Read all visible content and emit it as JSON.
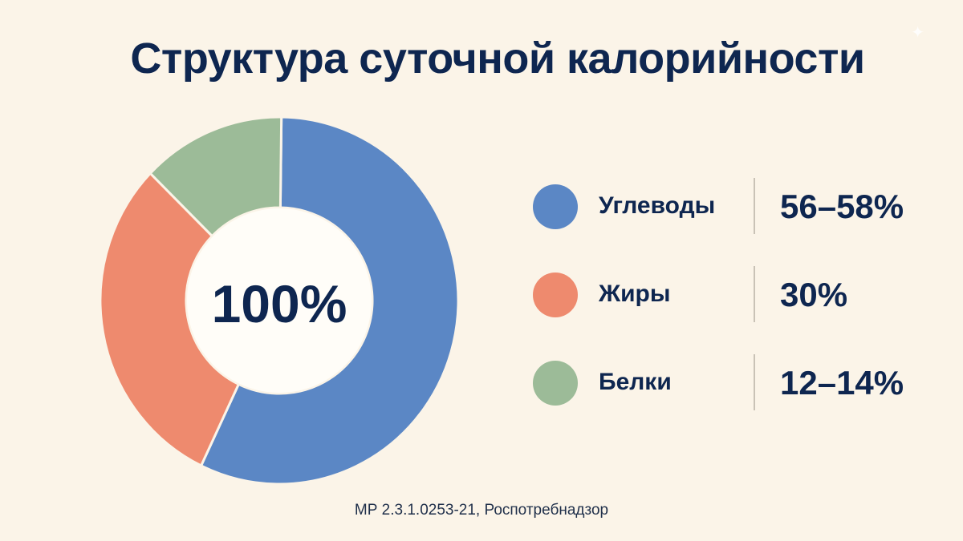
{
  "title": "Структура суточной калорийности",
  "source": "МР 2.3.1.0253-21, Роспотребнадзор",
  "chart_data": {
    "type": "pie",
    "title": "Структура суточной калорийности",
    "center_label": "100%",
    "legend_position": "right",
    "categories": [
      "Углеводы",
      "Жиры",
      "Белки"
    ],
    "values": [
      57,
      30,
      13
    ],
    "value_labels": [
      "56–58%",
      "30%",
      "12–14%"
    ],
    "colors": [
      "#5B87C5",
      "#EE8A6E",
      "#9CBB98"
    ]
  }
}
